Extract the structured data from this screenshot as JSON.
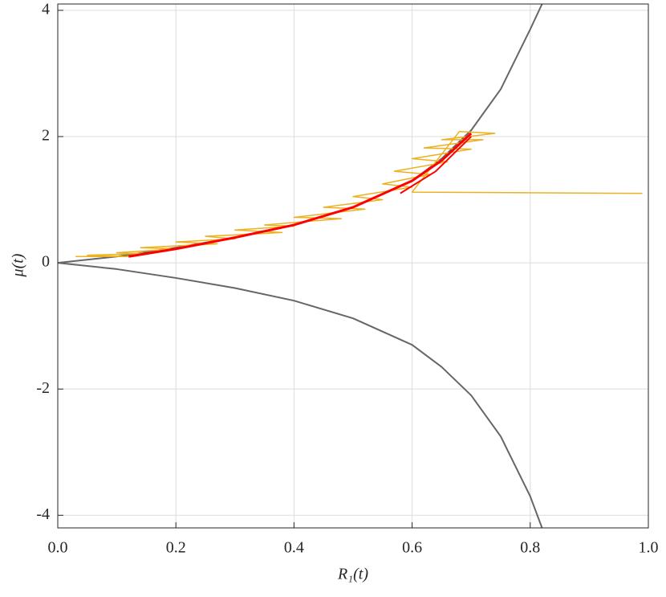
{
  "chart_data": {
    "type": "line",
    "xlabel": "R₁(t)",
    "ylabel": "μ(t)",
    "xlim": [
      0,
      1
    ],
    "ylim": [
      -4.2,
      4.1
    ],
    "xticks": [
      {
        "value": 0,
        "label": "0.0"
      },
      0.2,
      0.4,
      0.6,
      0.8,
      {
        "value": 1,
        "label": "1.0"
      }
    ],
    "yticks": [
      -4,
      -2,
      0,
      2,
      4
    ],
    "grid": true,
    "series": [
      {
        "color": "#666666",
        "width": 2,
        "x": [
          0,
          0.1,
          0.2,
          0.3,
          0.4,
          0.5,
          0.6,
          0.65,
          0.7,
          0.75,
          0.8,
          0.82
        ],
        "values": [
          0,
          0.1,
          0.24,
          0.4,
          0.6,
          0.88,
          1.3,
          1.65,
          2.1,
          2.75,
          3.7,
          4.1
        ]
      },
      {
        "color": "#666666",
        "width": 2,
        "x": [
          0,
          0.1,
          0.2,
          0.3,
          0.4,
          0.5,
          0.6,
          0.65,
          0.7,
          0.75,
          0.8,
          0.82
        ],
        "values": [
          0,
          -0.1,
          -0.24,
          -0.4,
          -0.6,
          -0.88,
          -1.3,
          -1.65,
          -2.1,
          -2.75,
          -3.7,
          -4.2
        ]
      },
      {
        "color": "#EDB120",
        "width": 1.5,
        "x": [
          0.03,
          0.12,
          0.05,
          0.15,
          0.1,
          0.2,
          0.14,
          0.27,
          0.2,
          0.3,
          0.25,
          0.38,
          0.3,
          0.4,
          0.35,
          0.48,
          0.4,
          0.52,
          0.45,
          0.55,
          0.5,
          0.6,
          0.55,
          0.63,
          0.57,
          0.66,
          0.6,
          0.7,
          0.62,
          0.72,
          0.65,
          0.74,
          0.68,
          0.6,
          0.99
        ],
        "values": [
          0.1,
          0.1,
          0.12,
          0.15,
          0.16,
          0.22,
          0.24,
          0.3,
          0.33,
          0.38,
          0.42,
          0.48,
          0.52,
          0.58,
          0.6,
          0.7,
          0.72,
          0.85,
          0.88,
          1.0,
          1.05,
          1.2,
          1.25,
          1.4,
          1.45,
          1.6,
          1.65,
          1.8,
          1.82,
          1.95,
          1.95,
          2.05,
          2.08,
          1.12,
          1.1
        ]
      },
      {
        "color": "#FF0000",
        "width": 3,
        "x": [
          0.12,
          0.2,
          0.3,
          0.4,
          0.5,
          0.6,
          0.65,
          0.7
        ],
        "values": [
          0.1,
          0.22,
          0.4,
          0.6,
          0.88,
          1.3,
          1.62,
          2.05
        ]
      },
      {
        "color": "#FF0000",
        "width": 2,
        "x": [
          0.58,
          0.64,
          0.7
        ],
        "values": [
          1.1,
          1.45,
          2.0
        ]
      }
    ]
  }
}
